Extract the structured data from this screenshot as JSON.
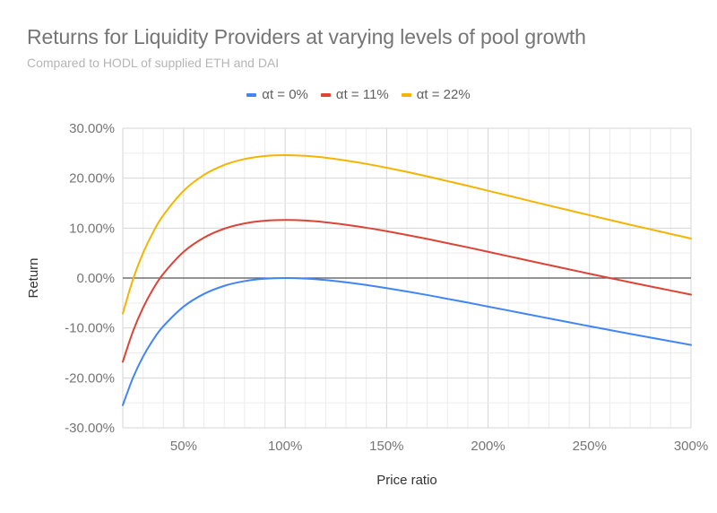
{
  "chart_data": {
    "type": "line",
    "title": "Returns for Liquidity Providers at varying levels of pool growth",
    "subtitle": "Compared to HODL of supplied ETH and DAI",
    "xlabel": "Price ratio",
    "ylabel": "Return",
    "xlim": [
      0.2,
      3.0
    ],
    "ylim": [
      -0.3,
      0.3
    ],
    "x_ticks": [
      {
        "value": 0.5,
        "label": "50%"
      },
      {
        "value": 1.0,
        "label": "100%"
      },
      {
        "value": 1.5,
        "label": "150%"
      },
      {
        "value": 2.0,
        "label": "200%"
      },
      {
        "value": 2.5,
        "label": "250%"
      },
      {
        "value": 3.0,
        "label": "300%"
      }
    ],
    "y_ticks": [
      {
        "value": 0.3,
        "label": "30.00%"
      },
      {
        "value": 0.2,
        "label": "20.00%"
      },
      {
        "value": 0.1,
        "label": "10.00%"
      },
      {
        "value": 0.0,
        "label": "0.00%"
      },
      {
        "value": -0.1,
        "label": "-10.00%"
      },
      {
        "value": -0.2,
        "label": "-20.00%"
      },
      {
        "value": -0.3,
        "label": "-30.00%"
      }
    ],
    "grid": true,
    "legend_position": "top",
    "x": [
      0.2,
      0.25,
      0.3,
      0.35,
      0.4,
      0.5,
      0.6,
      0.7,
      0.8,
      0.9,
      1.0,
      1.1,
      1.2,
      1.3,
      1.4,
      1.5,
      1.6,
      1.7,
      1.8,
      1.9,
      2.0,
      2.1,
      2.2,
      2.3,
      2.4,
      2.5,
      2.6,
      2.7,
      2.8,
      2.9,
      3.0
    ],
    "series": [
      {
        "name": "αt = 0%",
        "color": "#4285F4",
        "values": [
          -0.2546,
          -0.2,
          -0.1573,
          -0.1235,
          -0.0965,
          -0.0572,
          -0.0318,
          -0.0157,
          -0.0062,
          -0.0014,
          0.0,
          -0.0011,
          -0.0041,
          -0.0086,
          -0.014,
          -0.0202,
          -0.0269,
          -0.034,
          -0.0417,
          -0.0492,
          -0.0572,
          -0.065,
          -0.073,
          -0.0809,
          -0.0887,
          -0.0965,
          -0.1042,
          -0.1118,
          -0.1192,
          -0.1266,
          -0.134
        ]
      },
      {
        "name": "αt = 11%",
        "color": "#DB4437",
        "values": [
          -0.1679,
          -0.107,
          -0.0593,
          -0.0216,
          0.0086,
          0.0525,
          0.0808,
          0.0988,
          0.1094,
          0.1147,
          0.1163,
          0.1151,
          0.1117,
          0.1067,
          0.1007,
          0.0938,
          0.0863,
          0.0784,
          0.0698,
          0.0614,
          0.0525,
          0.0437,
          0.0348,
          0.026,
          0.0173,
          0.0086,
          0.0,
          -0.0085,
          -0.0168,
          -0.025,
          -0.0333
        ]
      },
      {
        "name": "αt = 22%",
        "color": "#F4B400",
        "values": [
          -0.0712,
          -0.0031,
          0.0501,
          0.0922,
          0.1259,
          0.1748,
          0.2065,
          0.2265,
          0.2384,
          0.2444,
          0.2461,
          0.2447,
          0.241,
          0.2354,
          0.2287,
          0.2209,
          0.2126,
          0.2037,
          0.1941,
          0.1848,
          0.1748,
          0.1651,
          0.1551,
          0.1452,
          0.1356,
          0.1259,
          0.1163,
          0.1068,
          0.0976,
          0.0883,
          0.0791
        ]
      }
    ]
  }
}
